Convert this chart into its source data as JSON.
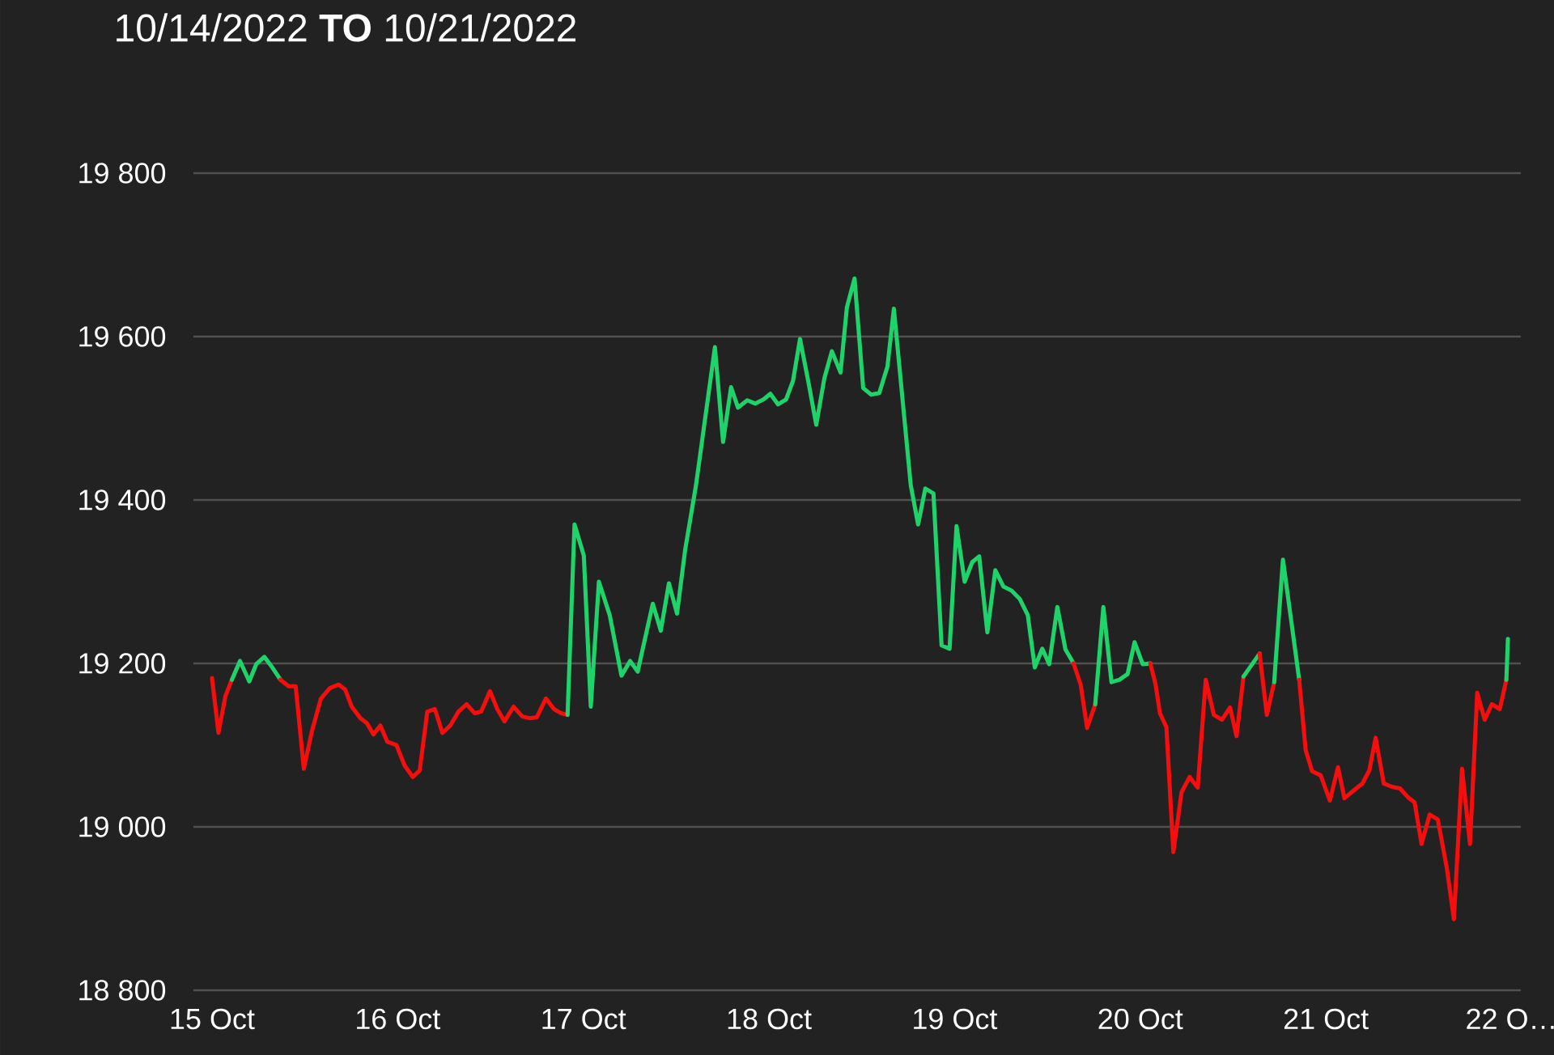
{
  "chart_data": {
    "type": "line",
    "title": "10/14/2022 **TO** 10/21/2022",
    "xlim": [
      "2022-10-14T21:36",
      "2022-10-22T01:12"
    ],
    "xticks": [
      {
        "value": "2022-10-15",
        "label": "15 Oct"
      },
      {
        "value": "2022-10-16",
        "label": "16 Oct"
      },
      {
        "value": "2022-10-17",
        "label": "17 Oct"
      },
      {
        "value": "2022-10-18",
        "label": "18 Oct"
      },
      {
        "value": "2022-10-19",
        "label": "19 Oct"
      },
      {
        "value": "2022-10-20",
        "label": "20 Oct"
      },
      {
        "value": "2022-10-21",
        "label": "21 Oct"
      },
      {
        "value": "2022-10-22",
        "label": "22 O…"
      }
    ],
    "ylim": [
      18800,
      19800
    ],
    "yticks": [
      {
        "value": 18800,
        "label": "18 800"
      },
      {
        "value": 19000,
        "label": "19 000"
      },
      {
        "value": 19200,
        "label": "19 200"
      },
      {
        "value": 19400,
        "label": "19 400"
      },
      {
        "value": 19600,
        "label": "19 600"
      },
      {
        "value": 19800,
        "label": "19 800"
      }
    ],
    "grid": "y",
    "series": [
      {
        "color": "#f50e0e",
        "x": [
          "2022-10-15T00:00",
          "2022-10-15T00:50",
          "2022-10-15T01:44",
          "2022-10-15T02:34"
        ],
        "values": [
          19182,
          19115,
          19160,
          19180
        ]
      },
      {
        "color": "#1fd36b",
        "x": [
          "2022-10-15T02:34",
          "2022-10-15T03:37",
          "2022-10-15T04:49",
          "2022-10-15T05:43",
          "2022-10-15T06:46",
          "2022-10-15T07:48",
          "2022-10-15T08:51"
        ],
        "values": [
          19180,
          19203,
          19178,
          19199,
          19208,
          19195,
          19180
        ]
      },
      {
        "color": "#f50e0e",
        "x": [
          "2022-10-15T08:51",
          "2022-10-15T09:54",
          "2022-10-15T10:49",
          "2022-10-15T11:52",
          "2022-10-15T12:55",
          "2022-10-15T14:05",
          "2022-10-15T15:16",
          "2022-10-15T16:23",
          "2022-10-15T17:13",
          "2022-10-15T18:04",
          "2022-10-15T19:11",
          "2022-10-15T20:01",
          "2022-10-15T20:52",
          "2022-10-15T21:46",
          "2022-10-15T22:40",
          "2022-10-15T23:51",
          "2022-10-16T00:54",
          "2022-10-16T01:57",
          "2022-10-16T02:51",
          "2022-10-16T03:50",
          "2022-10-16T04:49",
          "2022-10-16T05:47",
          "2022-10-16T06:49",
          "2022-10-16T07:52",
          "2022-10-16T08:55",
          "2022-10-16T09:58",
          "2022-10-16T10:48",
          "2022-10-16T11:56",
          "2022-10-16T12:53",
          "2022-10-16T13:49",
          "2022-10-16T14:59",
          "2022-10-16T16:07",
          "2022-10-16T17:04",
          "2022-10-16T17:59",
          "2022-10-16T19:10",
          "2022-10-16T20:13",
          "2022-10-16T21:08",
          "2022-10-16T21:58"
        ],
        "values": [
          19180,
          19172,
          19172,
          19071,
          19117,
          19157,
          19170,
          19174,
          19168,
          19147,
          19133,
          19127,
          19113,
          19124,
          19104,
          19100,
          19075,
          19061,
          19069,
          19141,
          19144,
          19115,
          19124,
          19141,
          19150,
          19139,
          19141,
          19166,
          19144,
          19129,
          19147,
          19135,
          19133,
          19134,
          19157,
          19144,
          19139,
          19137
        ]
      },
      {
        "color": "#1fd36b",
        "x": [
          "2022-10-16T21:58",
          "2022-10-16T22:52",
          "2022-10-17T00:04",
          "2022-10-17T00:58",
          "2022-10-17T02:01",
          "2022-10-17T03:25",
          "2022-10-17T04:56",
          "2022-10-17T06:03",
          "2022-10-17T07:02",
          "2022-10-17T08:59",
          "2022-10-17T10:01",
          "2022-10-17T11:04",
          "2022-10-17T12:07",
          "2022-10-17T13:10",
          "2022-10-17T14:34",
          "2022-10-17T17:01",
          "2022-10-17T18:04",
          "2022-10-17T19:06",
          "2022-10-17T20:00",
          "2022-10-17T21:12",
          "2022-10-17T22:14",
          "2022-10-17T23:17",
          "2022-10-18T00:11",
          "2022-10-18T01:10",
          "2022-10-18T02:13",
          "2022-10-18T03:07",
          "2022-10-18T04:01",
          "2022-10-18T05:04",
          "2022-10-18T06:07",
          "2022-10-18T07:10",
          "2022-10-18T08:08",
          "2022-10-18T09:15",
          "2022-10-18T10:05",
          "2022-10-18T11:04",
          "2022-10-18T12:11",
          "2022-10-18T13:13",
          "2022-10-18T14:16",
          "2022-10-18T15:19",
          "2022-10-18T16:09",
          "2022-10-18T18:20",
          "2022-10-18T19:17",
          "2022-10-18T20:13",
          "2022-10-18T21:16",
          "2022-10-18T22:19",
          "2022-10-18T23:21",
          "2022-10-19T00:15",
          "2022-10-19T01:18",
          "2022-10-19T02:17",
          "2022-10-19T03:11",
          "2022-10-19T04:14",
          "2022-10-19T05:16",
          "2022-10-19T06:19",
          "2022-10-19T07:22",
          "2022-10-19T08:25",
          "2022-10-19T09:28",
          "2022-10-19T10:22",
          "2022-10-19T11:20",
          "2022-10-19T12:14",
          "2022-10-19T13:17",
          "2022-10-19T14:20",
          "2022-10-19T15:23"
        ],
        "values": [
          19137,
          19370,
          19332,
          19147,
          19300,
          19259,
          19185,
          19203,
          19190,
          19273,
          19240,
          19298,
          19261,
          19339,
          19418,
          19587,
          19471,
          19538,
          19513,
          19522,
          19518,
          19523,
          19530,
          19517,
          19523,
          19546,
          19597,
          19546,
          19492,
          19549,
          19582,
          19556,
          19636,
          19671,
          19537,
          19529,
          19531,
          19563,
          19634,
          19418,
          19370,
          19414,
          19408,
          19222,
          19218,
          19368,
          19300,
          19324,
          19331,
          19238,
          19314,
          19294,
          19289,
          19279,
          19259,
          19195,
          19218,
          19199,
          19269,
          19217,
          19200
        ]
      },
      {
        "color": "#f50e0e",
        "x": [
          "2022-10-19T15:23",
          "2022-10-19T16:18",
          "2022-10-19T17:08",
          "2022-10-19T18:11"
        ],
        "values": [
          19200,
          19174,
          19121,
          19150
        ]
      },
      {
        "color": "#1fd36b",
        "x": [
          "2022-10-19T18:11",
          "2022-10-19T19:14",
          "2022-10-19T20:17",
          "2022-10-19T21:19",
          "2022-10-19T22:22",
          "2022-10-19T23:16",
          "2022-10-20T00:19",
          "2022-10-20T01:18"
        ],
        "values": [
          19150,
          19269,
          19177,
          19180,
          19187,
          19226,
          19199,
          19200
        ]
      },
      {
        "color": "#f50e0e",
        "x": [
          "2022-10-20T01:18",
          "2022-10-20T01:59",
          "2022-10-20T02:33",
          "2022-10-20T03:23",
          "2022-10-20T04:17",
          "2022-10-20T05:20",
          "2022-10-20T06:23",
          "2022-10-20T07:26",
          "2022-10-20T08:28",
          "2022-10-20T09:31",
          "2022-10-20T10:34",
          "2022-10-20T11:37",
          "2022-10-20T12:27",
          "2022-10-20T13:21"
        ],
        "values": [
          19200,
          19174,
          19139,
          19122,
          18969,
          19042,
          19061,
          19048,
          19180,
          19137,
          19131,
          19146,
          19111,
          19184
        ]
      },
      {
        "color": "#1fd36b",
        "x": [
          "2022-10-20T13:21",
          "2022-10-20T15:26"
        ],
        "values": [
          19184,
          19212
        ]
      },
      {
        "color": "#f50e0e",
        "x": [
          "2022-10-20T15:26",
          "2022-10-20T16:22",
          "2022-10-20T17:19"
        ],
        "values": [
          19212,
          19137,
          19177
        ]
      },
      {
        "color": "#1fd36b",
        "x": [
          "2022-10-20T17:19",
          "2022-10-20T18:27",
          "2022-10-20T20:33"
        ],
        "values": [
          19177,
          19327,
          19180
        ]
      },
      {
        "color": "#f50e0e",
        "x": [
          "2022-10-20T20:33",
          "2022-10-20T21:23",
          "2022-10-20T22:13",
          "2022-10-20T23:20",
          "2022-10-21T00:31",
          "2022-10-21T01:34",
          "2022-10-21T02:24",
          "2022-10-21T03:40",
          "2022-10-21T04:43",
          "2022-10-21T05:37",
          "2022-10-21T06:26",
          "2022-10-21T07:29",
          "2022-10-21T08:32",
          "2022-10-21T09:35",
          "2022-10-21T10:38",
          "2022-10-21T11:28",
          "2022-10-21T12:22",
          "2022-10-21T13:25",
          "2022-10-21T14:28",
          "2022-10-21T15:39",
          "2022-10-21T16:33",
          "2022-10-21T17:36",
          "2022-10-21T18:38",
          "2022-10-21T19:34",
          "2022-10-21T20:32",
          "2022-10-21T21:27",
          "2022-10-21T22:29",
          "2022-10-21T23:20"
        ],
        "values": [
          19180,
          19094,
          19068,
          19063,
          19032,
          19073,
          19035,
          19045,
          19053,
          19069,
          19109,
          19053,
          19049,
          19047,
          19036,
          19030,
          18979,
          19015,
          19009,
          18949,
          18887,
          19071,
          18979,
          19164,
          19131,
          19150,
          19144,
          19180
        ]
      },
      {
        "color": "#1fd36b",
        "x": [
          "2022-10-21T23:20",
          "2022-10-21T23:32"
        ],
        "values": [
          19180,
          19230
        ]
      }
    ]
  }
}
